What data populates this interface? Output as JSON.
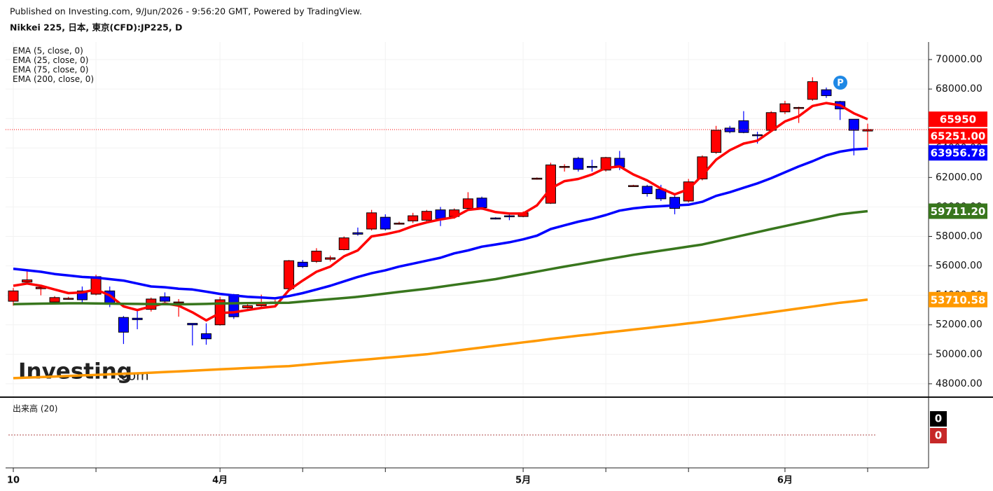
{
  "chart_data": {
    "type": "candlestick",
    "source": "Published on Investing.com, 9/Jun/2026 - 9:56:20 GMT, Powered by TradingView.",
    "title": "Nikkei 225, 日本, 東京(CFD):JP225, D",
    "watermark": [
      "Investing",
      ".com"
    ],
    "marker_label": "P",
    "categories": [
      "10",
      null,
      null,
      null,
      null,
      null,
      null,
      null,
      null,
      null,
      null,
      null,
      null,
      null,
      null,
      "4月",
      null,
      null,
      null,
      null,
      null,
      null,
      null,
      null,
      null,
      null,
      null,
      null,
      null,
      null,
      null,
      null,
      null,
      null,
      null,
      null,
      null,
      "5月",
      null,
      null,
      null,
      null,
      null,
      null,
      null,
      null,
      null,
      null,
      null,
      null,
      null,
      null,
      null,
      null,
      null,
      null,
      "6月",
      null,
      null,
      null,
      null,
      null,
      null
    ],
    "up_color": "#ff0000",
    "down_color": "#0000ff",
    "open": [
      53600,
      54900,
      54450,
      53550,
      53750,
      54300,
      54080,
      54300,
      52500,
      52450,
      53050,
      53900,
      53500,
      52100,
      51400,
      52000,
      54050,
      53150,
      53300,
      53500,
      54450,
      56250,
      56300,
      56450,
      57100,
      58250,
      58500,
      59300,
      58850,
      59050,
      59100,
      59800,
      59350,
      59900,
      60600,
      59250,
      59400,
      59350,
      61900,
      60250,
      62700,
      63300,
      62750,
      62500,
      63300,
      61450,
      61400,
      61200,
      60650,
      60400,
      61900,
      63700,
      65350,
      65850,
      64900,
      65200,
      66450,
      66700,
      67300,
      67950,
      67150,
      65950,
      65150
    ],
    "high": [
      54500,
      55700,
      54700,
      53950,
      53900,
      54600,
      55400,
      54600,
      52600,
      53000,
      53850,
      54200,
      53750,
      52100,
      52100,
      53900,
      54100,
      53500,
      54050,
      53700,
      56400,
      56400,
      57200,
      56700,
      58000,
      58600,
      59800,
      59500,
      59000,
      59600,
      59800,
      60000,
      59900,
      61000,
      60700,
      59300,
      59500,
      59700,
      62000,
      63000,
      62900,
      63400,
      63200,
      63400,
      63800,
      61500,
      61500,
      61500,
      60800,
      61900,
      63500,
      65500,
      65500,
      66500,
      65100,
      66500,
      67200,
      66800,
      68800,
      68100,
      67200,
      65950,
      65650
    ],
    "low": [
      53300,
      54800,
      54000,
      53400,
      53700,
      53500,
      54000,
      53200,
      50700,
      51700,
      52900,
      53400,
      52550,
      50600,
      50650,
      51950,
      52400,
      53100,
      53200,
      53400,
      54400,
      55850,
      56200,
      56300,
      57050,
      58050,
      58400,
      58400,
      58800,
      58900,
      59000,
      58700,
      59200,
      59800,
      59800,
      59150,
      59100,
      59300,
      61850,
      60200,
      62400,
      62400,
      62400,
      62400,
      62500,
      61400,
      60700,
      60400,
      59500,
      60300,
      61800,
      63600,
      65000,
      65000,
      64300,
      65100,
      66300,
      65700,
      67200,
      67400,
      65900,
      63500,
      64050
    ],
    "close": [
      54300,
      55050,
      54550,
      53850,
      53800,
      53700,
      55270,
      53400,
      51500,
      52350,
      53750,
      53600,
      53550,
      52000,
      51050,
      53700,
      52550,
      53300,
      53450,
      53550,
      56350,
      55950,
      57000,
      56550,
      57900,
      58150,
      59600,
      58500,
      58900,
      59400,
      59700,
      59200,
      59800,
      60550,
      59950,
      59200,
      59350,
      59600,
      61950,
      62850,
      62750,
      62550,
      62700,
      63350,
      62700,
      61450,
      60900,
      60550,
      59900,
      61700,
      63400,
      65200,
      65100,
      65050,
      64850,
      66400,
      67000,
      66750,
      68500,
      67550,
      66650,
      65200,
      65251
    ],
    "last_label": "65251.00",
    "series": [
      {
        "name": "EMA (5, close, 0)",
        "color": "#ff0000",
        "values": [
          54650,
          54800,
          54650,
          54400,
          54150,
          54200,
          54400,
          54000,
          53250,
          53000,
          53250,
          53450,
          53300,
          52850,
          52300,
          52800,
          52850,
          53000,
          53150,
          53250,
          54350,
          55000,
          55600,
          55950,
          56650,
          57050,
          58000,
          58150,
          58350,
          58700,
          58950,
          59150,
          59300,
          59800,
          59900,
          59650,
          59550,
          59550,
          60100,
          61250,
          61750,
          61900,
          62200,
          62650,
          62750,
          62200,
          61800,
          61250,
          60850,
          61200,
          62150,
          63200,
          63850,
          64300,
          64500,
          65150,
          65800,
          66150,
          66850,
          67050,
          66900,
          66350,
          65950
        ]
      },
      {
        "name": "EMA (25, close, 0)",
        "color": "#0000ff",
        "values": [
          55800,
          55700,
          55600,
          55450,
          55350,
          55250,
          55200,
          55100,
          55000,
          54800,
          54600,
          54550,
          54450,
          54400,
          54250,
          54100,
          54000,
          53900,
          53850,
          53800,
          53950,
          54150,
          54400,
          54650,
          54950,
          55250,
          55500,
          55700,
          55950,
          56150,
          56350,
          56550,
          56850,
          57050,
          57300,
          57450,
          57600,
          57800,
          58050,
          58500,
          58750,
          59000,
          59200,
          59450,
          59750,
          59900,
          60000,
          60050,
          60100,
          60150,
          60350,
          60750,
          61000,
          61300,
          61600,
          61950,
          62350,
          62750,
          63100,
          63500,
          63750,
          63900,
          63956.78
        ]
      },
      {
        "name": "EMA (75, close, 0)",
        "color": "#38761d",
        "last_label": "59711.20",
        "values": [
          53400,
          53420,
          53440,
          53450,
          53460,
          53460,
          53450,
          53440,
          53430,
          53420,
          53410,
          53400,
          53390,
          53400,
          53420,
          53450,
          53460,
          53470,
          53480,
          53490,
          53500,
          53580,
          53660,
          53740,
          53820,
          53900,
          54010,
          54120,
          54230,
          54340,
          54450,
          54580,
          54710,
          54840,
          54970,
          55100,
          55270,
          55440,
          55610,
          55780,
          55950,
          56110,
          56270,
          56430,
          56590,
          56750,
          56890,
          57030,
          57170,
          57310,
          57450,
          57660,
          57870,
          58080,
          58290,
          58500,
          58700,
          58900,
          59100,
          59300,
          59500,
          59610,
          59711.2
        ]
      },
      {
        "name": "EMA (200, close, 0)",
        "color": "#ff9900",
        "values": [
          48380,
          48420,
          48450,
          48490,
          48530,
          48570,
          48600,
          48640,
          48680,
          48710,
          48750,
          48800,
          48840,
          48890,
          48930,
          48980,
          49020,
          49070,
          49110,
          49160,
          49200,
          49280,
          49360,
          49440,
          49520,
          49600,
          49680,
          49760,
          49840,
          49920,
          50000,
          50120,
          50230,
          50350,
          50460,
          50580,
          50690,
          50810,
          50920,
          51040,
          51150,
          51260,
          51360,
          51470,
          51570,
          51680,
          51780,
          51890,
          51990,
          52100,
          52200,
          52330,
          52460,
          52590,
          52720,
          52850,
          52980,
          53110,
          53240,
          53370,
          53500,
          53600,
          53710.58
        ]
      }
    ],
    "ylim": [
      47140,
      71190
    ],
    "yticks": [
      {
        "value": 48000,
        "label": "48000.00"
      },
      {
        "value": 50000,
        "label": "50000.00"
      },
      {
        "value": 52000,
        "label": "52000.00"
      },
      {
        "value": 54000,
        "label": "54000.00"
      },
      {
        "value": 56000,
        "label": "56000.00"
      },
      {
        "value": 58000,
        "label": "58000.00"
      },
      {
        "value": 60000,
        "label": "60000.00"
      },
      {
        "value": 62000,
        "label": "62000.00"
      },
      {
        "value": 64000,
        "label": "64000.00"
      },
      {
        "value": 66000,
        "label": "66000.00"
      },
      {
        "value": 68000,
        "label": "68000.00"
      },
      {
        "value": 70000,
        "label": "70000.00"
      }
    ],
    "grid": true,
    "volume": {
      "title": "出来高 (20)",
      "labels": [
        0,
        0
      ]
    }
  }
}
